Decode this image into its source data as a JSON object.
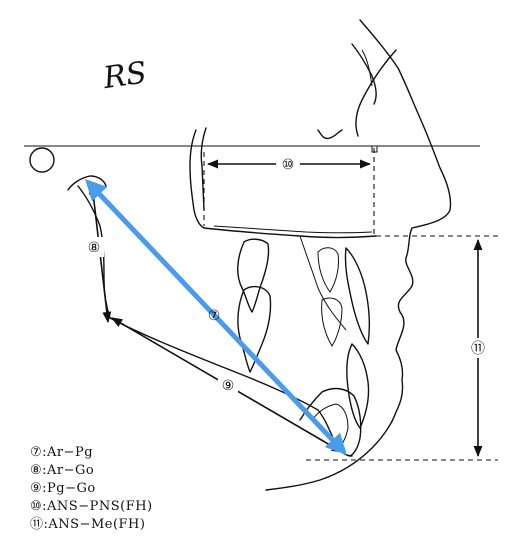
{
  "annotation": {
    "handwritten": "RS"
  },
  "labels": {
    "m7": "⑦",
    "m8": "⑧",
    "m9": "⑨",
    "m10": "⑩",
    "m11": "⑪"
  },
  "legend": [
    {
      "num": "⑦",
      "text": ":Ar−Pg"
    },
    {
      "num": "⑧",
      "text": ":Ar−Go"
    },
    {
      "num": "⑨",
      "text": ":Pg−Go"
    },
    {
      "num": "⑩",
      "text": ":ANS−PNS(FH)"
    },
    {
      "num": "⑪",
      "text": ":ANS−Me(FH)"
    }
  ],
  "colors": {
    "ink": "#111111",
    "highlight": "#4a9bea"
  }
}
